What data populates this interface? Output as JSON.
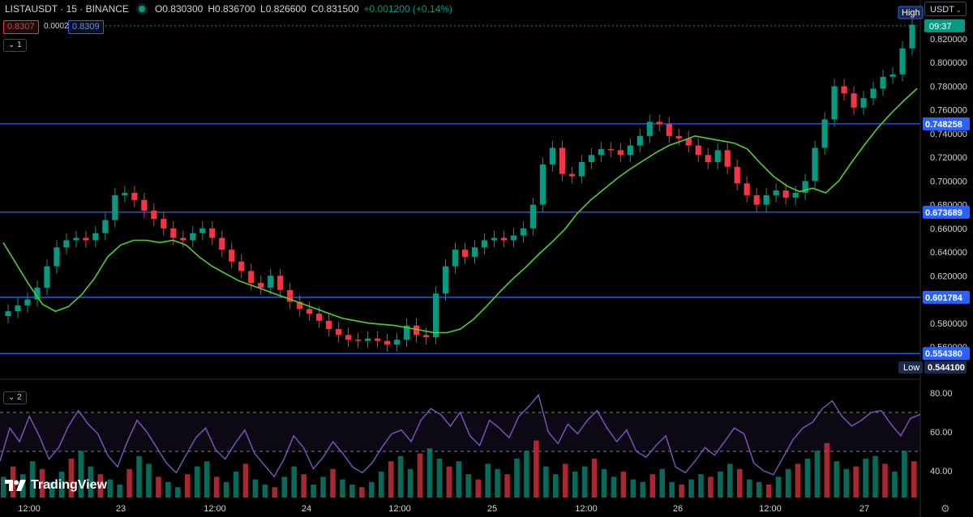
{
  "header": {
    "symbol": "LISTAUSDT · 15 · BINANCE",
    "open": "O0.830300",
    "high": "H0.836700",
    "low": "L0.826600",
    "close": "C0.831500",
    "change": "+0.001200 (+0.14%)",
    "sell_price": "0.8307",
    "spread": "0.0002",
    "buy_price": "0.8309"
  },
  "currency": "USDT",
  "pane_tags": [
    "1",
    "2"
  ],
  "brand": "TradingView",
  "colors": {
    "background": "#000000",
    "up": "#089981",
    "down": "#f23645",
    "ma": "#4cd22a",
    "hline": "#2962ff",
    "rsi": "#7e57c2"
  },
  "chart_data": [
    {
      "type": "line",
      "title": "",
      "x_ticks": [
        "12:00",
        "23",
        "12:00",
        "24",
        "12:00",
        "25",
        "12:00",
        "26",
        "12:00",
        "27"
      ],
      "y_ticks": [
        "0.820000",
        "0.800000",
        "0.780000",
        "0.760000",
        "0.740000",
        "0.720000",
        "0.700000",
        "0.680000",
        "0.660000",
        "0.640000",
        "0.620000",
        "0.600000",
        "0.580000",
        "0.560000"
      ],
      "ylim": [
        0.548,
        0.833
      ],
      "price_close_series": {
        "name": "",
        "values": [
          0.59,
          0.595,
          0.6,
          0.61,
          0.628,
          0.644,
          0.65,
          0.652,
          0.65,
          0.656,
          0.667,
          0.688,
          0.69,
          0.684,
          0.675,
          0.668,
          0.66,
          0.652,
          0.65,
          0.656,
          0.66,
          0.652,
          0.642,
          0.632,
          0.624,
          0.614,
          0.61,
          0.62,
          0.608,
          0.598,
          0.592,
          0.588,
          0.582,
          0.575,
          0.57,
          0.566,
          0.565,
          0.567,
          0.565,
          0.562,
          0.566,
          0.578,
          0.57,
          0.568,
          0.605,
          0.628,
          0.642,
          0.636,
          0.644,
          0.65,
          0.652,
          0.65,
          0.654,
          0.66,
          0.68,
          0.714,
          0.728,
          0.706,
          0.704,
          0.716,
          0.722,
          0.727,
          0.726,
          0.722,
          0.73,
          0.738,
          0.75,
          0.748,
          0.738,
          0.736,
          0.73,
          0.722,
          0.716,
          0.726,
          0.712,
          0.698,
          0.688,
          0.68,
          0.688,
          0.692,
          0.686,
          0.69,
          0.7,
          0.728,
          0.752,
          0.78,
          0.774,
          0.762,
          0.77,
          0.778,
          0.788,
          0.79,
          0.812,
          0.832
        ]
      },
      "moving_average": {
        "name": "",
        "values": [
          0.648,
          0.63,
          0.612,
          0.596,
          0.59,
          0.594,
          0.604,
          0.618,
          0.636,
          0.646,
          0.65,
          0.65,
          0.648,
          0.65,
          0.646,
          0.636,
          0.628,
          0.622,
          0.616,
          0.612,
          0.608,
          0.604,
          0.6,
          0.596,
          0.592,
          0.588,
          0.584,
          0.582,
          0.58,
          0.579,
          0.578,
          0.576,
          0.574,
          0.572,
          0.572,
          0.575,
          0.583,
          0.594,
          0.606,
          0.617,
          0.627,
          0.638,
          0.648,
          0.659,
          0.673,
          0.684,
          0.693,
          0.702,
          0.71,
          0.717,
          0.724,
          0.73,
          0.734,
          0.738,
          0.736,
          0.734,
          0.732,
          0.727,
          0.715,
          0.704,
          0.696,
          0.691,
          0.694,
          0.69,
          0.7,
          0.716,
          0.731,
          0.745,
          0.757,
          0.768,
          0.778
        ]
      },
      "horizontal_levels": [
        0.748258,
        0.673689,
        0.601784,
        0.55438
      ],
      "horizontal_level_labels": [
        "0.748258",
        "0.673689",
        "0.601784",
        "0.554380"
      ],
      "last_price_label": "09:37",
      "high_label": "High",
      "low_label": "Low",
      "low_value_label": "0.544100"
    },
    {
      "type": "line",
      "title": "",
      "ylim": [
        30,
        82
      ],
      "y_ticks": [
        "80.00",
        "60.00",
        "40.00"
      ],
      "bands": [
        70,
        50
      ],
      "series": [
        {
          "name": "",
          "values": [
            45,
            62,
            55,
            68,
            58,
            46,
            52,
            63,
            71,
            64,
            59,
            48,
            42,
            55,
            66,
            60,
            52,
            44,
            39,
            48,
            57,
            62,
            51,
            46,
            54,
            61,
            49,
            43,
            37,
            46,
            58,
            52,
            41,
            47,
            55,
            49,
            42,
            39,
            44,
            52,
            59,
            61,
            55,
            66,
            72,
            69,
            63,
            70,
            58,
            53,
            66,
            62,
            57,
            68,
            73,
            79,
            60,
            54,
            64,
            59,
            66,
            71,
            62,
            55,
            61,
            50,
            47,
            53,
            58,
            42,
            39,
            45,
            52,
            48,
            55,
            62,
            59,
            44,
            40,
            38,
            47,
            56,
            62,
            65,
            72,
            76,
            68,
            63,
            66,
            70,
            71,
            64,
            58,
            67,
            69
          ]
        }
      ],
      "volume": {
        "values": [
          8,
          12,
          9,
          14,
          11,
          6,
          10,
          15,
          18,
          12,
          9,
          7,
          5,
          11,
          16,
          13,
          8,
          6,
          4,
          9,
          12,
          14,
          8,
          6,
          10,
          13,
          7,
          5,
          4,
          8,
          12,
          9,
          5,
          8,
          11,
          7,
          5,
          4,
          6,
          10,
          14,
          16,
          11,
          17,
          19,
          15,
          12,
          14,
          9,
          7,
          13,
          11,
          9,
          15,
          18,
          22,
          12,
          9,
          13,
          10,
          12,
          15,
          11,
          8,
          10,
          7,
          6,
          9,
          11,
          6,
          5,
          7,
          9,
          8,
          10,
          13,
          11,
          7,
          6,
          5,
          8,
          11,
          13,
          15,
          18,
          21,
          14,
          11,
          12,
          15,
          16,
          13,
          10,
          18,
          14
        ]
      }
    }
  ]
}
